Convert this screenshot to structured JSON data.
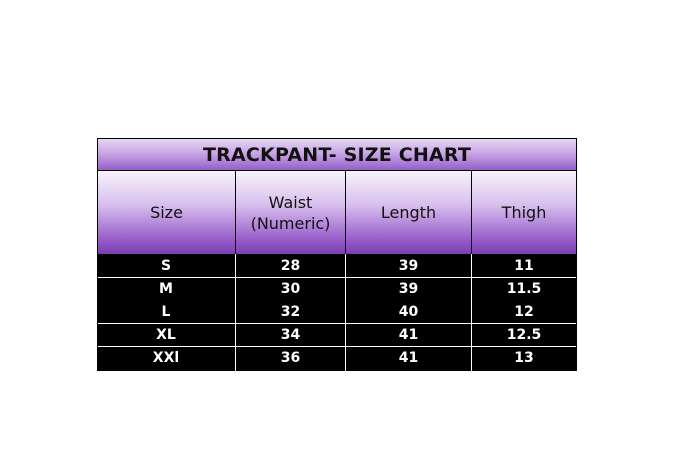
{
  "title": "TRACKPANT- SIZE CHART",
  "columns": [
    "Size",
    "Waist\n(Numeric)",
    "Length",
    "Thigh"
  ],
  "column_lines": [
    [
      "Size"
    ],
    [
      "Waist",
      "(Numeric)"
    ],
    [
      "Length"
    ],
    [
      "Thigh"
    ]
  ],
  "rows": [
    [
      "S",
      "28",
      "39",
      "11"
    ],
    [
      "M",
      "30",
      "39",
      "11.5"
    ],
    [
      "L",
      "32",
      "40",
      "12"
    ],
    [
      "XL",
      "34",
      "41",
      "12.5"
    ],
    [
      "XXl",
      "36",
      "41",
      "13"
    ]
  ],
  "colors": {
    "header_purple": "#7a3db2",
    "body_bg": "#000000",
    "body_text": "#ffffff"
  }
}
